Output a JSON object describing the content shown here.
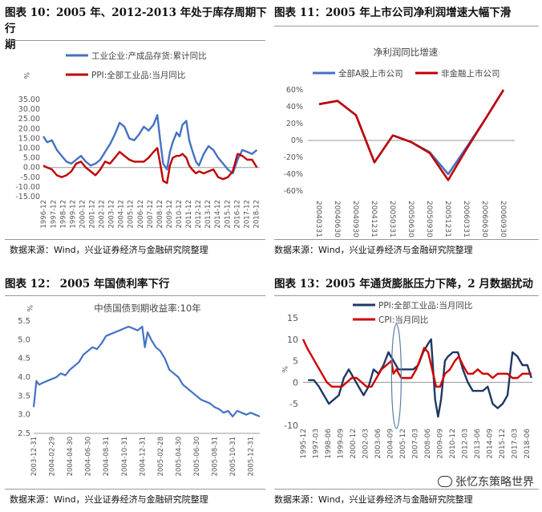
{
  "panels": {
    "p10": {
      "title_line1": "图表 10：2005 年、2012-2013 年处于库存周期下行",
      "title_line2": "期",
      "source": "数据来源：Wind，兴业证券经济与金融研究院整理"
    },
    "p11": {
      "title": "图表 11：2005 年上市公司净利润增速大幅下滑",
      "source": "数据来源：Wind，兴业证券经济与金融研究院整理"
    },
    "p12": {
      "title": "图表 12：  2005 年国债利率下行",
      "source": "数据来源：Wind，兴业证券经济与金融研究院整理"
    },
    "p13": {
      "title": "图表 13：2005 年通货膨胀压力下降，2 月数据扰动",
      "source": "数据来源：Wind，兴业证券经济与金融研究院整理"
    }
  },
  "watermark": "张忆东策略世界",
  "colors": {
    "blue": "#4472C4",
    "red": "#C00000",
    "navy": "#1F3864",
    "red2": "#D00000",
    "gridline": "#d9d9d9",
    "axis": "#999999"
  },
  "chart_data": [
    {
      "id": "c10",
      "type": "line",
      "unit": "%",
      "ylim": [
        -15,
        35
      ],
      "yticks": [
        "35.00",
        "30.00",
        "25.00",
        "20.00",
        "15.00",
        "10.00",
        "5.00",
        "0.00",
        "-5.00",
        "-10.00",
        "-15.00"
      ],
      "ytick_values": [
        35,
        30,
        25,
        20,
        15,
        10,
        5,
        0,
        -5,
        -10,
        -15
      ],
      "xlim": [
        1996.9,
        2019.3
      ],
      "xticks": [
        "1996-12",
        "1997-12",
        "1998-12",
        "1999-12",
        "2000-12",
        "2001-12",
        "2002-12",
        "2003-12",
        "2004-12",
        "2005-12",
        "2006-12",
        "2007-12",
        "2008-12",
        "2009-12",
        "2010-12",
        "2011-12",
        "2012-12",
        "2013-12",
        "2014-12",
        "2015-12",
        "2016-12",
        "2017-12",
        "2018-12"
      ],
      "xtick_values": [
        1996.92,
        1997.92,
        1998.92,
        1999.92,
        2000.92,
        2001.92,
        2002.92,
        2003.92,
        2004.92,
        2005.92,
        2006.92,
        2007.92,
        2008.92,
        2009.92,
        2010.92,
        2011.92,
        2012.92,
        2013.92,
        2014.92,
        2015.92,
        2016.92,
        2017.92,
        2018.92
      ],
      "series": [
        {
          "name": "工业企业:产成品存货:累计同比",
          "color": "#4472C4",
          "x": [
            1996.9,
            1997.3,
            1997.8,
            1998.3,
            1998.8,
            1999.3,
            1999.8,
            2000.3,
            2000.8,
            2001.3,
            2001.8,
            2002.3,
            2002.8,
            2003.3,
            2003.8,
            2004.3,
            2004.8,
            2005.3,
            2005.8,
            2006.3,
            2006.8,
            2007.3,
            2007.8,
            2008.3,
            2008.7,
            2009.0,
            2009.3,
            2009.7,
            2010.0,
            2010.3,
            2010.7,
            2011.0,
            2011.3,
            2011.7,
            2012.0,
            2012.3,
            2012.7,
            2013.0,
            2013.5,
            2014.0,
            2014.5,
            2015.0,
            2015.5,
            2016.0,
            2016.5,
            2017.0,
            2017.5,
            2018.0,
            2018.5,
            2019.0
          ],
          "y": [
            16,
            13,
            14,
            9,
            6,
            3,
            2,
            4,
            6,
            3,
            1,
            2,
            4,
            8,
            12,
            17,
            23,
            21,
            15,
            14,
            17,
            21,
            19,
            22,
            27,
            14,
            2,
            -1,
            8,
            13,
            18,
            16,
            22,
            24,
            14,
            9,
            3,
            1,
            7,
            11,
            9,
            5,
            2,
            -1,
            -3,
            4,
            9,
            8,
            7,
            9
          ]
        },
        {
          "name": "PPI:全部工业品:当月同比",
          "color": "#C00000",
          "x": [
            1996.9,
            1997.3,
            1997.8,
            1998.3,
            1998.8,
            1999.3,
            1999.8,
            2000.3,
            2000.8,
            2001.3,
            2001.8,
            2002.3,
            2002.8,
            2003.3,
            2003.8,
            2004.3,
            2004.8,
            2005.3,
            2005.8,
            2006.3,
            2006.8,
            2007.3,
            2007.8,
            2008.3,
            2008.7,
            2009.0,
            2009.3,
            2009.7,
            2010.0,
            2010.3,
            2010.7,
            2011.0,
            2011.3,
            2011.7,
            2012.0,
            2012.3,
            2012.7,
            2013.0,
            2013.5,
            2014.0,
            2014.5,
            2015.0,
            2015.5,
            2016.0,
            2016.5,
            2017.0,
            2017.5,
            2018.0,
            2018.5,
            2019.0
          ],
          "y": [
            1,
            0,
            -1,
            -4,
            -5,
            -4,
            -2,
            2,
            3,
            0,
            -2,
            -4,
            -1,
            3,
            2,
            5,
            8,
            6,
            4,
            3,
            3,
            3,
            5,
            8,
            10,
            2,
            -7,
            -8,
            1,
            5,
            6,
            6,
            7,
            5,
            1,
            -1,
            -3,
            -2,
            -3,
            -2,
            -1,
            -5,
            -6,
            -5,
            -2,
            7,
            6,
            4,
            4,
            0
          ]
        }
      ]
    },
    {
      "id": "c11",
      "type": "line",
      "title": "净利润同比增速",
      "ylim": [
        -60,
        60
      ],
      "yticks": [
        "60%",
        "40%",
        "20%",
        "0%",
        "-20%",
        "-40%",
        "-60%"
      ],
      "ytick_values": [
        60,
        40,
        20,
        0,
        -20,
        -40,
        -60
      ],
      "categories": [
        "20040331",
        "20040630",
        "20040930",
        "20041231",
        "20050331",
        "20050630",
        "20050930",
        "20051231",
        "20060331",
        "20060630",
        "20060930"
      ],
      "series": [
        {
          "name": "全部A股上市公司",
          "color": "#4472C4",
          "values": [
            43,
            47,
            30,
            -26,
            6,
            -2,
            -14,
            -40,
            -8,
            25,
            60
          ]
        },
        {
          "name": "非金融上市公司",
          "color": "#C00000",
          "values": [
            43,
            47,
            30,
            -26,
            6,
            -2,
            -15,
            -47,
            -10,
            25,
            60
          ]
        }
      ]
    },
    {
      "id": "c12",
      "type": "line",
      "title": "中债国债到期收益率:10年",
      "unit": "%",
      "ylim": [
        2.5,
        5.5
      ],
      "yticks": [
        "5.5",
        "5.0",
        "4.5",
        "4.0",
        "3.5",
        "3.0",
        "2.5"
      ],
      "ytick_values": [
        5.5,
        5.0,
        4.5,
        4.0,
        3.5,
        3.0,
        2.5
      ],
      "xticks": [
        "2003-12-31",
        "2004-02-29",
        "2004-04-30",
        "2004-06-30",
        "2004-08-31",
        "2004-10-31",
        "2004-12-31",
        "2005-02-28",
        "2005-04-30",
        "2005-06-30",
        "2005-08-31",
        "2005-10-31",
        "2005-12-31"
      ],
      "xtick_values": [
        0,
        2,
        4,
        6,
        8,
        10,
        12,
        14,
        16,
        18,
        20,
        22,
        24
      ],
      "xlim": [
        0,
        25
      ],
      "series": [
        {
          "name": "中债国债到期收益率:10年",
          "color": "#4472C4",
          "x": [
            0,
            0.3,
            0.6,
            1,
            1.5,
            2,
            2.5,
            3,
            3.5,
            4,
            4.5,
            5,
            5.5,
            6,
            6.5,
            7,
            7.5,
            8,
            8.5,
            9,
            9.5,
            10,
            10.5,
            11,
            11.5,
            12,
            12.3,
            12.6,
            13,
            13.5,
            14,
            14.5,
            15,
            15.5,
            16,
            16.5,
            17,
            17.5,
            18,
            18.5,
            19,
            19.5,
            20,
            20.5,
            21,
            21.5,
            22,
            22.5,
            23,
            23.5,
            24,
            24.5,
            25
          ],
          "y": [
            3.2,
            3.9,
            3.8,
            3.85,
            3.9,
            3.95,
            4.0,
            4.1,
            4.05,
            4.2,
            4.3,
            4.4,
            4.6,
            4.7,
            4.8,
            4.75,
            4.9,
            5.1,
            5.15,
            5.2,
            5.25,
            5.3,
            5.35,
            5.3,
            5.25,
            5.35,
            4.8,
            5.2,
            5.0,
            4.8,
            4.7,
            4.5,
            4.2,
            4.1,
            4.0,
            3.8,
            3.7,
            3.6,
            3.5,
            3.4,
            3.35,
            3.3,
            3.2,
            3.15,
            3.05,
            3.1,
            2.95,
            3.1,
            3.05,
            3.0,
            3.05,
            3.0,
            2.95
          ]
        }
      ]
    },
    {
      "id": "c13",
      "type": "line",
      "unit": "%",
      "ylim": [
        -10,
        15
      ],
      "yticks": [
        "15",
        "10",
        "5",
        "0",
        "-5",
        "-10"
      ],
      "ytick_values": [
        15,
        10,
        5,
        0,
        -5,
        -10
      ],
      "xlim": [
        1995.9,
        2019.0
      ],
      "xticks": [
        "1995-12",
        "1997-03",
        "1998-06",
        "1999-09",
        "2000-12",
        "2002-03",
        "2003-06",
        "2004-09",
        "2005-12",
        "2007-03",
        "2008-06",
        "2009-09",
        "2010-12",
        "2012-03",
        "2013-06",
        "2014-09",
        "2015-12",
        "2017-03",
        "2018-06"
      ],
      "xtick_values": [
        1995.92,
        1997.17,
        1998.42,
        1999.67,
        2000.92,
        2002.17,
        2003.42,
        2004.67,
        2005.92,
        2007.17,
        2008.42,
        2009.67,
        2010.92,
        2012.17,
        2013.42,
        2014.67,
        2015.92,
        2017.17,
        2018.42
      ],
      "series": [
        {
          "name": "PPI:全部工业品:当月同比",
          "color": "#1F3864",
          "x": [
            1996.4,
            1997.0,
            1997.5,
            1998.0,
            1998.5,
            1999.0,
            1999.5,
            2000.0,
            2000.5,
            2001.0,
            2001.5,
            2002.0,
            2002.5,
            2003.0,
            2003.5,
            2004.0,
            2004.5,
            2005.0,
            2005.5,
            2006.0,
            2006.5,
            2007.0,
            2007.5,
            2008.0,
            2008.5,
            2008.8,
            2009.2,
            2009.5,
            2009.8,
            2010.2,
            2010.5,
            2011.0,
            2011.5,
            2012.0,
            2012.5,
            2013.0,
            2013.5,
            2014.0,
            2014.5,
            2015.0,
            2015.5,
            2016.0,
            2016.5,
            2017.0,
            2017.5,
            2018.0,
            2018.5,
            2018.9
          ],
          "y": [
            0.5,
            0.5,
            -1,
            -3,
            -5,
            -4,
            -3,
            1,
            3,
            1,
            -1,
            -3,
            -1,
            3,
            2,
            4,
            7,
            5,
            3,
            3,
            3,
            3,
            4,
            7,
            9,
            10,
            -4,
            -8,
            -4,
            5,
            6,
            7,
            7,
            3,
            0,
            -2,
            -2,
            -2,
            -1,
            -5,
            -6,
            -5,
            -3,
            7,
            6,
            4,
            4,
            1
          ]
        },
        {
          "name": "CPI:当月同比",
          "color": "#D00000",
          "x": [
            1995.9,
            1996.3,
            1996.8,
            1997.3,
            1997.8,
            1998.3,
            1998.8,
            1999.3,
            1999.8,
            2000.3,
            2000.8,
            2001.3,
            2001.8,
            2002.3,
            2002.8,
            2003.3,
            2003.8,
            2004.3,
            2004.8,
            2005.0,
            2005.3,
            2005.8,
            2006.3,
            2006.8,
            2007.3,
            2007.8,
            2008.1,
            2008.5,
            2008.9,
            2009.3,
            2009.7,
            2010.2,
            2010.7,
            2011.2,
            2011.6,
            2012.0,
            2012.5,
            2013.0,
            2013.5,
            2014.0,
            2014.5,
            2015.0,
            2015.5,
            2016.0,
            2016.5,
            2017.0,
            2017.5,
            2018.0,
            2018.5,
            2018.9
          ],
          "y": [
            10,
            8,
            6,
            4,
            2,
            0,
            -1,
            -1,
            -1,
            0,
            1,
            1,
            0,
            -1,
            -1,
            1,
            3,
            4,
            5,
            2,
            3,
            1,
            1,
            1,
            3,
            6,
            8,
            7,
            3,
            -1,
            -1,
            2,
            3,
            5,
            6,
            4,
            2,
            2,
            3,
            2,
            2,
            1,
            2,
            2,
            2,
            1,
            1,
            2,
            2,
            2
          ]
        }
      ]
    }
  ]
}
